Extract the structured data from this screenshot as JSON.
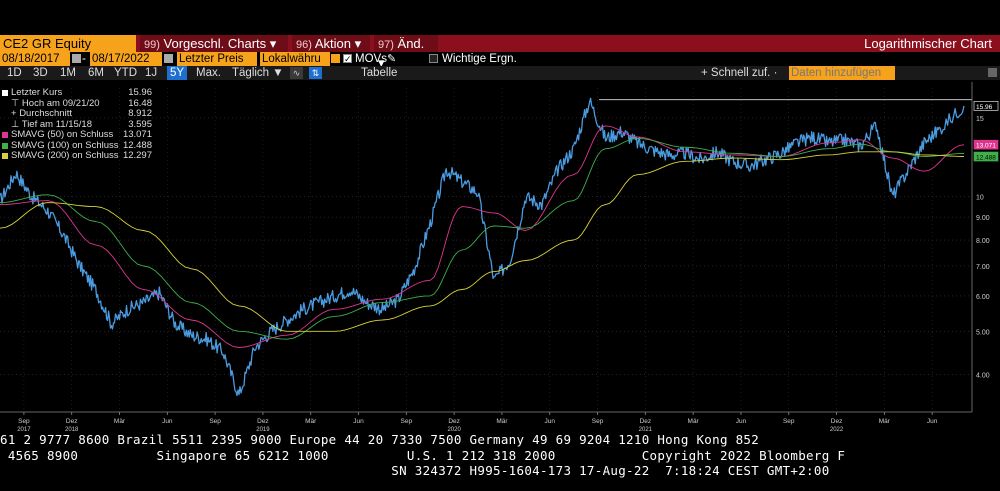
{
  "header": {
    "ticker": "CE2 GR Equity",
    "menus": [
      {
        "num": "99)",
        "label": "Vorgeschl. Charts"
      },
      {
        "num": "96)",
        "label": "Aktion"
      },
      {
        "num": "97)",
        "label": "Änd."
      }
    ],
    "mode": "Logarithmischer Chart"
  },
  "settings": {
    "start_date": "08/18/2017",
    "end_date": "08/17/2022",
    "field": "Letzter Preis",
    "currency": "Lokalwähru",
    "movs_label": "MOVs",
    "events_label": "Wichtige Ergn."
  },
  "toolbar": {
    "periods": [
      "1D",
      "3D",
      "1M",
      "6M",
      "YTD",
      "1J",
      "5Y",
      "Max."
    ],
    "active_period": "5Y",
    "interval": "Täglich ▼",
    "table": "Tabelle",
    "quick": "Schnell zuf. ·",
    "add_data": "Daten hinzufügen"
  },
  "colors": {
    "price": "#4a9be0",
    "sma50": "#e0358f",
    "sma100": "#3fb04a",
    "sma200": "#d8d23a"
  },
  "chart_data": {
    "type": "line",
    "yscale": "log",
    "ylim": [
      3.3,
      17.5
    ],
    "yticks": [
      4,
      5,
      6,
      7,
      8,
      9,
      10,
      15
    ],
    "x_month_ticks": [
      "Sep",
      "Dez",
      "Mär",
      "Jun",
      "Sep",
      "Dez",
      "Mär",
      "Jun",
      "Sep",
      "Dez",
      "Mär",
      "Jun",
      "Sep",
      "Dez",
      "Mär",
      "Jun",
      "Sep",
      "Dez",
      "Mär",
      "Jun"
    ],
    "x_year_ticks": [
      "2017",
      "2018",
      "2019",
      "2020",
      "2021",
      "2022"
    ],
    "legend": [
      {
        "label": "Letzter Kurs",
        "value": "15.96",
        "color": "#ffffff"
      },
      {
        "label": "Hoch am 09/21/20",
        "value": "16.48",
        "color": "#ffffff"
      },
      {
        "label": "Durchschnitt",
        "value": "8.912",
        "color": "#ffffff"
      },
      {
        "label": "Tief am 11/15/18",
        "value": "3.595",
        "color": "#ffffff"
      },
      {
        "label": "SMAVG (50)  on Schluss",
        "value": "13.071",
        "color": "#e0358f"
      },
      {
        "label": "SMAVG (100)  on Schluss",
        "value": "12.488",
        "color": "#3fb04a"
      },
      {
        "label": "SMAVG (200)  on Schluss",
        "value": "12.297",
        "color": "#d8d23a"
      }
    ],
    "labels": {
      "last": "15.96",
      "sma50": "13.071",
      "sma100": "12.488"
    },
    "high_line": 16.48,
    "series": [
      {
        "name": "Letzter Kurs",
        "color": "#4a9be0",
        "x": [
          "2017-08",
          "2017-09",
          "2017-10",
          "2017-11",
          "2017-12",
          "2018-01",
          "2018-02",
          "2018-03",
          "2018-04",
          "2018-05",
          "2018-06",
          "2018-07",
          "2018-08",
          "2018-09",
          "2018-10",
          "2018-11",
          "2018-12",
          "2019-01",
          "2019-02",
          "2019-03",
          "2019-04",
          "2019-05",
          "2019-06",
          "2019-07",
          "2019-08",
          "2019-09",
          "2019-10",
          "2019-11",
          "2019-12",
          "2020-01",
          "2020-02",
          "2020-03",
          "2020-04",
          "2020-05",
          "2020-06",
          "2020-07",
          "2020-08",
          "2020-09",
          "2020-10",
          "2020-11",
          "2020-12",
          "2021-01",
          "2021-02",
          "2021-03",
          "2021-04",
          "2021-05",
          "2021-06",
          "2021-07",
          "2021-08",
          "2021-09",
          "2021-10",
          "2021-11",
          "2021-12",
          "2022-01",
          "2022-02",
          "2022-03",
          "2022-04",
          "2022-05",
          "2022-06",
          "2022-07",
          "2022-08"
        ],
        "values": [
          9.8,
          11.3,
          10.0,
          9.3,
          8.2,
          7.0,
          6.2,
          5.2,
          5.6,
          5.8,
          6.1,
          5.2,
          4.9,
          4.8,
          4.5,
          3.6,
          4.6,
          5.0,
          5.3,
          5.6,
          5.8,
          6.0,
          6.2,
          5.8,
          5.6,
          5.9,
          6.9,
          8.7,
          11.5,
          10.8,
          10.2,
          6.5,
          7.2,
          10.0,
          9.6,
          11.5,
          12.8,
          16.4,
          13.5,
          14.0,
          13.2,
          12.7,
          12.4,
          12.5,
          12.1,
          12.6,
          12.0,
          11.7,
          12.1,
          12.5,
          13.2,
          13.6,
          13.2,
          13.4,
          13.0,
          14.5,
          10.0,
          11.5,
          13.2,
          14.2,
          15.96
        ]
      },
      {
        "name": "SMAVG (50)",
        "color": "#e0358f",
        "x": [
          "2017-08",
          "2017-11",
          "2018-02",
          "2018-05",
          "2018-08",
          "2018-11",
          "2019-02",
          "2019-05",
          "2019-08",
          "2019-11",
          "2020-01",
          "2020-03",
          "2020-05",
          "2020-08",
          "2020-10",
          "2020-12",
          "2021-03",
          "2021-06",
          "2021-09",
          "2021-12",
          "2022-02",
          "2022-04",
          "2022-06",
          "2022-08"
        ],
        "values": [
          9.6,
          9.8,
          7.8,
          6.2,
          5.3,
          4.6,
          4.9,
          5.6,
          5.9,
          6.5,
          9.5,
          9.2,
          8.4,
          11.2,
          14.4,
          13.6,
          12.6,
          12.4,
          12.3,
          13.2,
          13.4,
          12.2,
          11.4,
          13.07
        ]
      },
      {
        "name": "SMAVG (100)",
        "color": "#3fb04a",
        "x": [
          "2017-08",
          "2017-11",
          "2018-02",
          "2018-05",
          "2018-08",
          "2018-11",
          "2019-02",
          "2019-05",
          "2019-08",
          "2019-11",
          "2020-01",
          "2020-03",
          "2020-05",
          "2020-08",
          "2020-10",
          "2020-12",
          "2021-03",
          "2021-06",
          "2021-09",
          "2021-12",
          "2022-02",
          "2022-04",
          "2022-06",
          "2022-08"
        ],
        "values": [
          9.7,
          10.1,
          8.8,
          7.0,
          5.8,
          5.0,
          4.8,
          5.4,
          5.8,
          6.0,
          7.6,
          8.6,
          8.5,
          9.8,
          12.8,
          13.5,
          12.9,
          12.5,
          12.3,
          12.8,
          13.1,
          12.6,
          12.3,
          12.49
        ]
      },
      {
        "name": "SMAVG (200)",
        "color": "#d8d23a",
        "x": [
          "2017-08",
          "2017-11",
          "2018-02",
          "2018-05",
          "2018-08",
          "2018-11",
          "2019-02",
          "2019-05",
          "2019-08",
          "2019-11",
          "2020-01",
          "2020-03",
          "2020-05",
          "2020-08",
          "2020-10",
          "2020-12",
          "2021-03",
          "2021-06",
          "2021-09",
          "2021-12",
          "2022-02",
          "2022-04",
          "2022-06",
          "2022-08"
        ],
        "values": [
          8.5,
          9.7,
          9.5,
          8.4,
          6.9,
          5.7,
          5.0,
          5.0,
          5.3,
          5.7,
          6.2,
          6.8,
          7.2,
          8.0,
          9.6,
          11.2,
          12.0,
          12.2,
          12.1,
          12.4,
          12.6,
          12.6,
          12.4,
          12.3
        ]
      }
    ]
  },
  "footer": {
    "line1": "61 2 9777 8600 Brazil 5511 2395 9000 Europe 44 20 7330 7500 Germany 49 69 9204 1210 Hong Kong 852",
    "line2": " 4565 8900          Singapore 65 6212 1000          U.S. 1 212 318 2000           Copyright 2022 Bloomberg F",
    "line3": "                                                  SN 324372 H995-1604-173 17-Aug-22  7:18:24 CEST GMT+2:00"
  }
}
